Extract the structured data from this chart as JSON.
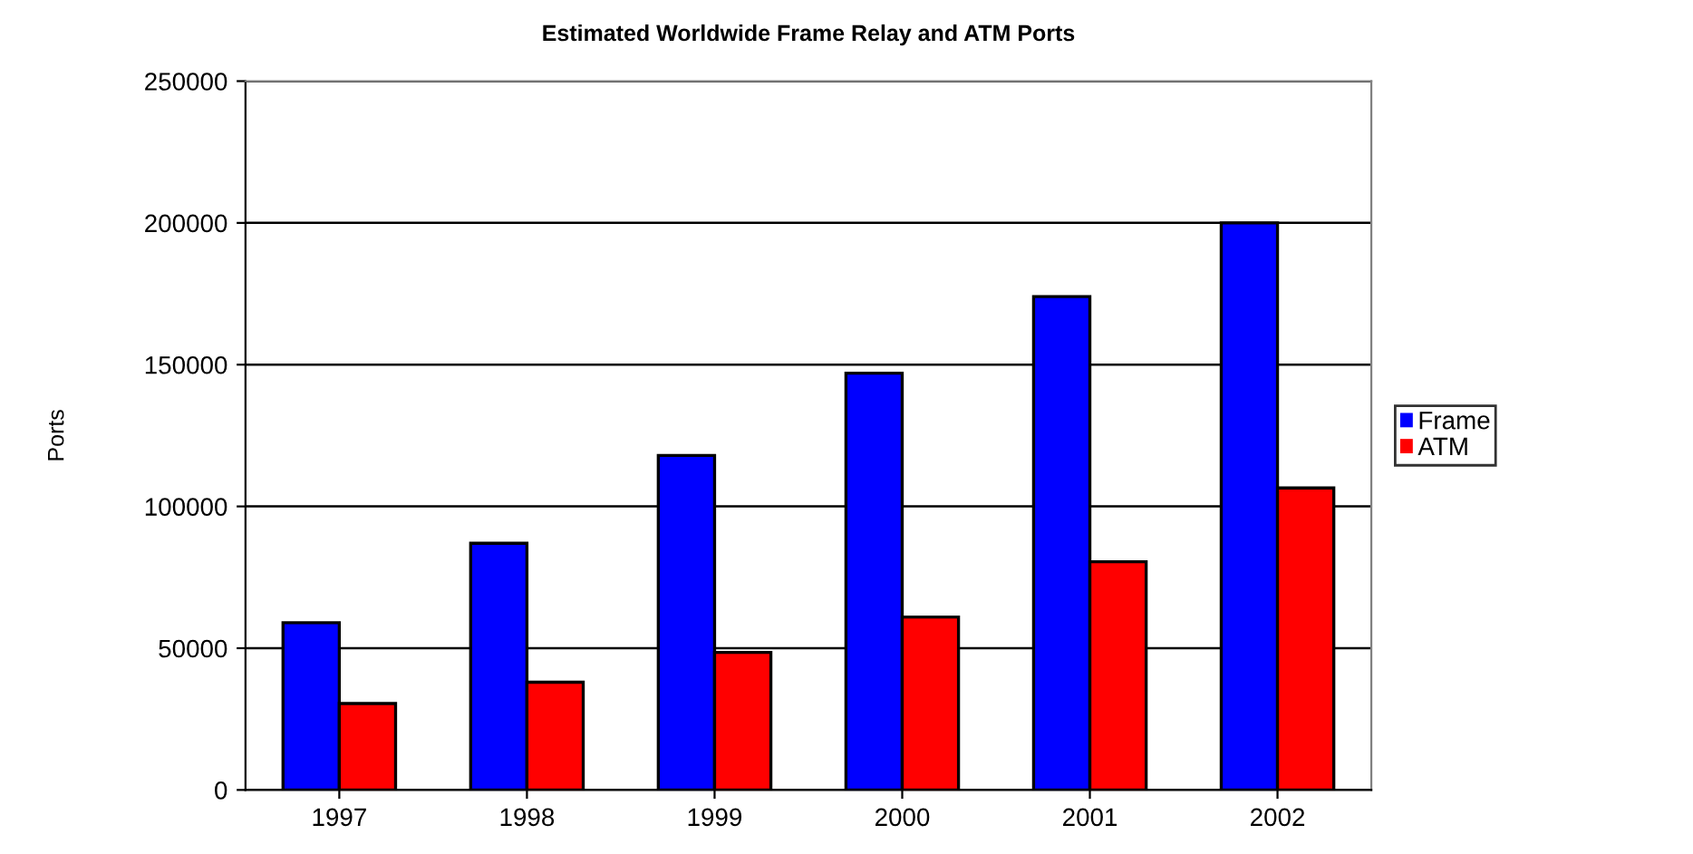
{
  "chart_data": {
    "type": "bar",
    "title": "Estimated Worldwide Frame Relay and ATM Ports",
    "ylabel": "Ports",
    "categories": [
      "1997",
      "1998",
      "1999",
      "2000",
      "2001",
      "2002"
    ],
    "series": [
      {
        "name": "Frame",
        "color": "#0000ff",
        "values": [
          59000,
          87000,
          118000,
          147000,
          174000,
          200000
        ]
      },
      {
        "name": "ATM",
        "color": "#ff0000",
        "values": [
          30500,
          38000,
          48500,
          61000,
          80500,
          106500
        ]
      }
    ],
    "ylim": [
      0,
      250000
    ],
    "yticks": [
      0,
      50000,
      100000,
      150000,
      200000,
      250000
    ],
    "grid": "y",
    "legend": "right"
  }
}
